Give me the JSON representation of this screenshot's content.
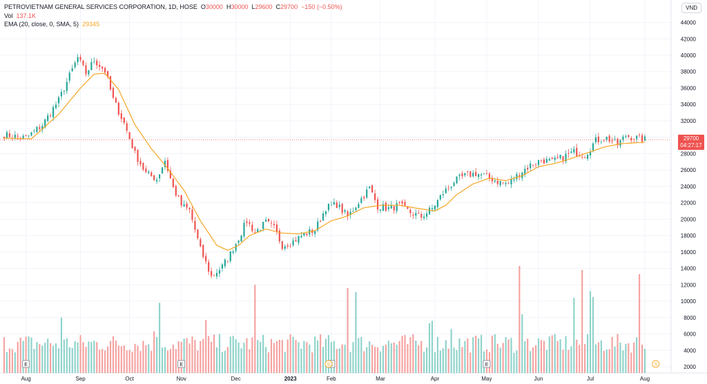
{
  "header": {
    "symbol_line_prefix": "PETROVIETNAM GENERAL SERVICES CORPORATION, 1D, HOSE",
    "ohlc": {
      "O": "30000",
      "H": "30000",
      "L": "29600",
      "C": "29700",
      "change": "−150 (−0.50%)"
    },
    "vol_label": "Vol",
    "vol_value": "137.1K",
    "ema_label": "EMA (20, close, 0, SMA, 5)",
    "ema_value": "29345"
  },
  "currency": "VND",
  "last_price": {
    "value": "29700",
    "countdown": "04:27:17"
  },
  "colors": {
    "up": "#26a69a",
    "down": "#ef5350",
    "up_vol": "#8fd3cb",
    "down_vol": "#f5a3a1",
    "ema": "#f5a623"
  },
  "chart_data": {
    "type": "candlestick",
    "title": "PETROVIETNAM GENERAL SERVICES CORPORATION, 1D, HOSE",
    "ylim": [
      1500,
      45000
    ],
    "yticks": [
      2000,
      4000,
      6000,
      8000,
      10000,
      12000,
      14000,
      16000,
      18000,
      20000,
      22000,
      24000,
      26000,
      28000,
      30000,
      32000,
      34000,
      36000,
      38000,
      40000,
      42000,
      44000
    ],
    "x_labels": [
      "Aug",
      "Sep",
      "Oct",
      "Nov",
      "Dec",
      "2023",
      "Feb",
      "Mar",
      "Apr",
      "May",
      "Jun",
      "Jul",
      "Aug"
    ],
    "x_label_bar_index": [
      8,
      28,
      46,
      65,
      85,
      105,
      120,
      138,
      158,
      177,
      196,
      215,
      235
    ],
    "bar_count": 236,
    "price_anchors": [
      [
        0,
        30300
      ],
      [
        8,
        29900
      ],
      [
        14,
        31500
      ],
      [
        20,
        34500
      ],
      [
        24,
        37500
      ],
      [
        27,
        39700
      ],
      [
        30,
        37800
      ],
      [
        33,
        39400
      ],
      [
        37,
        38100
      ],
      [
        40,
        34600
      ],
      [
        44,
        31700
      ],
      [
        48,
        28000
      ],
      [
        52,
        25600
      ],
      [
        56,
        24900
      ],
      [
        59,
        27200
      ],
      [
        62,
        23800
      ],
      [
        65,
        21700
      ],
      [
        68,
        21100
      ],
      [
        72,
        16300
      ],
      [
        76,
        13000
      ],
      [
        80,
        14200
      ],
      [
        83,
        15800
      ],
      [
        86,
        17700
      ],
      [
        89,
        19800
      ],
      [
        92,
        18400
      ],
      [
        96,
        19600
      ],
      [
        99,
        18900
      ],
      [
        102,
        16800
      ],
      [
        106,
        17300
      ],
      [
        110,
        18200
      ],
      [
        114,
        18700
      ],
      [
        118,
        21400
      ],
      [
        122,
        21800
      ],
      [
        126,
        20300
      ],
      [
        130,
        22100
      ],
      [
        134,
        23800
      ],
      [
        137,
        21600
      ],
      [
        141,
        21300
      ],
      [
        145,
        21700
      ],
      [
        149,
        20800
      ],
      [
        153,
        20300
      ],
      [
        157,
        21300
      ],
      [
        161,
        23200
      ],
      [
        165,
        24600
      ],
      [
        169,
        25300
      ],
      [
        173,
        25600
      ],
      [
        177,
        25200
      ],
      [
        181,
        24600
      ],
      [
        185,
        24300
      ],
      [
        189,
        25600
      ],
      [
        193,
        26600
      ],
      [
        197,
        27200
      ],
      [
        201,
        27000
      ],
      [
        205,
        27600
      ],
      [
        209,
        28200
      ],
      [
        213,
        27800
      ],
      [
        217,
        29600
      ],
      [
        221,
        29900
      ],
      [
        225,
        29100
      ],
      [
        228,
        30200
      ],
      [
        232,
        29900
      ],
      [
        235,
        29700
      ]
    ],
    "ema_anchors": [
      [
        0,
        29900
      ],
      [
        10,
        29800
      ],
      [
        20,
        32800
      ],
      [
        28,
        36000
      ],
      [
        33,
        37700
      ],
      [
        37,
        37800
      ],
      [
        42,
        35800
      ],
      [
        48,
        31500
      ],
      [
        54,
        28600
      ],
      [
        60,
        26200
      ],
      [
        66,
        23500
      ],
      [
        72,
        19800
      ],
      [
        78,
        16800
      ],
      [
        82,
        16200
      ],
      [
        86,
        16800
      ],
      [
        90,
        18000
      ],
      [
        96,
        18800
      ],
      [
        102,
        18300
      ],
      [
        108,
        18200
      ],
      [
        114,
        18600
      ],
      [
        120,
        19800
      ],
      [
        126,
        20400
      ],
      [
        132,
        21400
      ],
      [
        138,
        21700
      ],
      [
        145,
        21700
      ],
      [
        152,
        21300
      ],
      [
        158,
        21000
      ],
      [
        162,
        21700
      ],
      [
        166,
        23000
      ],
      [
        172,
        24300
      ],
      [
        178,
        25000
      ],
      [
        184,
        24700
      ],
      [
        190,
        25300
      ],
      [
        196,
        26400
      ],
      [
        202,
        26800
      ],
      [
        208,
        27400
      ],
      [
        214,
        28100
      ],
      [
        220,
        28800
      ],
      [
        226,
        29200
      ],
      [
        235,
        29400
      ]
    ],
    "volume_spikes": [
      [
        21,
        6500
      ],
      [
        57,
        8300
      ],
      [
        92,
        10500
      ],
      [
        74,
        6200
      ],
      [
        55,
        4800
      ],
      [
        126,
        10100
      ],
      [
        129,
        9600
      ],
      [
        156,
        5800
      ],
      [
        157,
        6100
      ],
      [
        179,
        4300
      ],
      [
        189,
        12800
      ],
      [
        190,
        6900
      ],
      [
        209,
        8900
      ],
      [
        212,
        12300
      ],
      [
        215,
        9700
      ],
      [
        216,
        9000
      ],
      [
        233,
        11800
      ],
      [
        164,
        5100
      ],
      [
        200,
        4200
      ]
    ],
    "event_markers": {
      "earnings_label": "E",
      "dividend_label": "S",
      "earnings_bar_index": [
        8,
        65,
        120,
        177
      ],
      "dividend_bar_index": [
        119,
        239
      ]
    }
  }
}
